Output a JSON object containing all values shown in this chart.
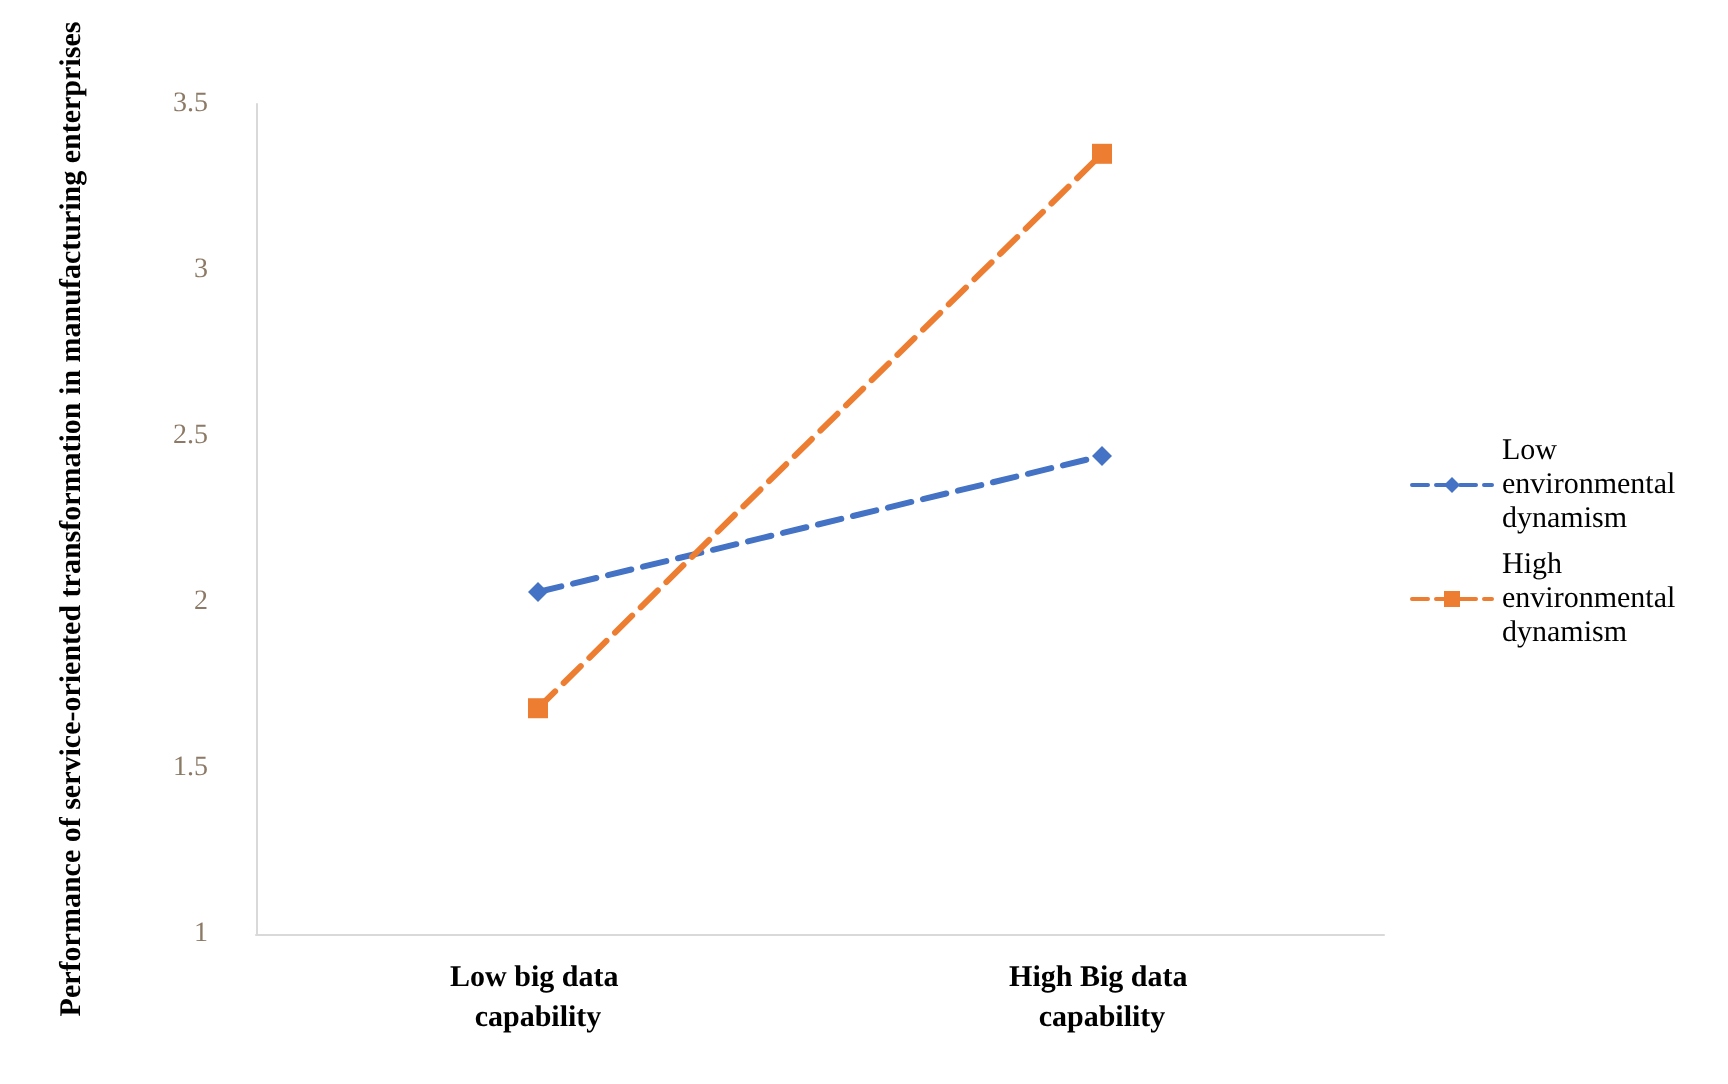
{
  "chart_data": {
    "type": "line",
    "ylabel": "Performance of service-oriented transformation in manufacturing enterprises",
    "categories": [
      "Low big data capability",
      "High Big data capability"
    ],
    "series": [
      {
        "name": "Low environmental dynamism",
        "color": "#4472c4",
        "values": [
          2.03,
          2.44
        ],
        "marker": "diamond"
      },
      {
        "name": "High environmental dynamism",
        "color": "#ed7d31",
        "values": [
          1.68,
          3.35
        ],
        "marker": "square"
      }
    ],
    "ylim": [
      1,
      3.5
    ],
    "yticks": [
      1,
      1.5,
      2,
      2.5,
      3,
      3.5
    ],
    "grid": false,
    "legend": "right",
    "line_style": "dashed"
  }
}
